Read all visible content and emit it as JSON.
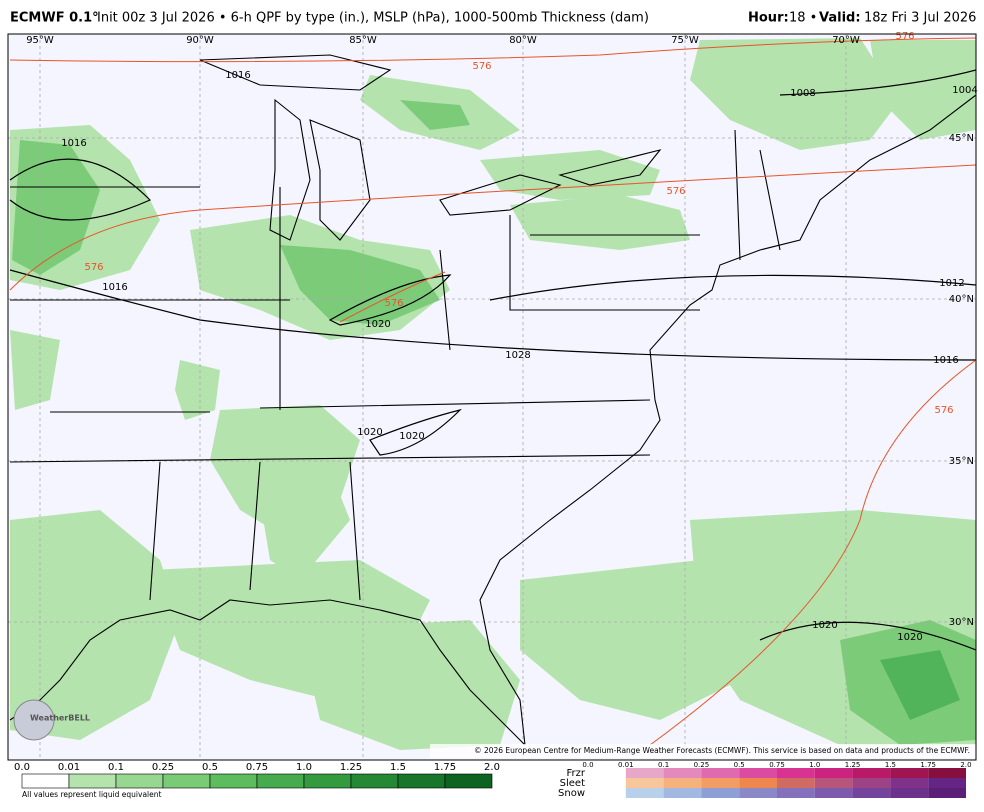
{
  "header": {
    "model": "ECMWF 0.1°",
    "description": "Init 00z 3 Jul 2026 • 6-h QPF by type (in.), MSLP (hPa), 1000-500mb Thickness (dam)",
    "hour_label": "Hour:",
    "hour": "18 •",
    "valid_label": "Valid:",
    "valid": "18z Fri 3 Jul 2026"
  },
  "map": {
    "lon_labels": [
      "95°W",
      "90°W",
      "85°W",
      "80°W",
      "75°W",
      "70°W"
    ],
    "lat_labels": [
      "45°N",
      "40°N",
      "35°N",
      "30°N"
    ],
    "isobar_labels": [
      "1016",
      "1016",
      "1016",
      "1008",
      "1004",
      "1012",
      "1016",
      "1020",
      "1028",
      "1020",
      "1020",
      "1020",
      "1020"
    ],
    "thickness_labels": [
      "576",
      "576",
      "576",
      "576",
      "576",
      "576"
    ],
    "logo": "WeatherBELL",
    "copyright": "© 2026 European Centre for Medium-Range Weather Forecasts (ECMWF). This service is based on data and products of the ECMWF."
  },
  "legend": {
    "rain_labels": [
      "0.0",
      "0.01",
      "0.1",
      "0.25",
      "0.5",
      "0.75",
      "1.0",
      "1.25",
      "1.5",
      "1.75",
      "2.0"
    ],
    "note": "All values represent liquid equivalent",
    "type_labels": [
      "Frzr",
      "Sleet",
      "Snow"
    ],
    "type_scale_labels": [
      "0.0",
      "0.01",
      "0.1",
      "0.25",
      "0.5",
      "0.75",
      "1.0",
      "1.25",
      "1.5",
      "1.75",
      "2.0"
    ]
  }
}
